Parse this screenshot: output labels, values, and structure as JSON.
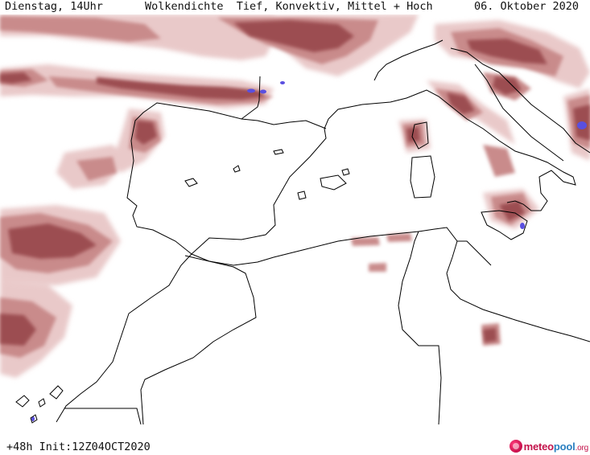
{
  "header": {
    "left": "Dienstag, 14Uhr",
    "title": "Wolkendichte  Tief, Konvektiv, Mittel + Hoch",
    "date": "06. Oktober 2020"
  },
  "footer": {
    "run_info": "+48h Init:12Z04OCT2020"
  },
  "logo": {
    "part_a": "meteo",
    "part_b": "pool",
    "part_c": ".org"
  },
  "colors": {
    "cloud_light": "#e9c9c9",
    "cloud_mid": "#c98b8b",
    "cloud_dark": "#9c4d51",
    "convective": "#5a4fe0",
    "coastline": "#000000",
    "brand": "#c3124a"
  }
}
